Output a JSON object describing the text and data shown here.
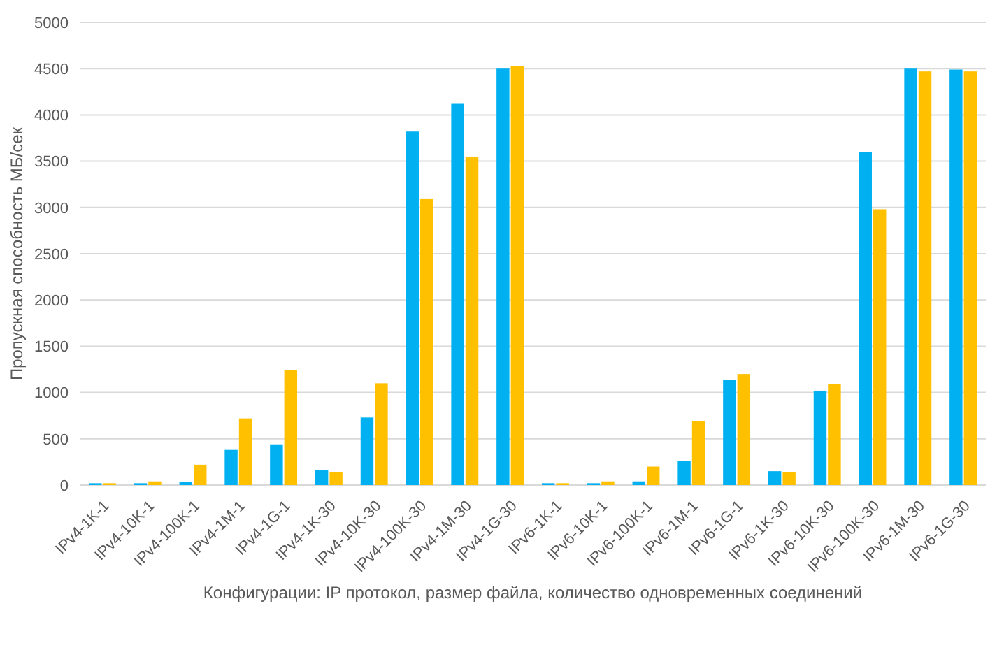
{
  "chart_data": {
    "type": "bar",
    "xlabel": "Конфигурации: IP протокол, размер файла, количество одновременных соединений",
    "ylabel": "Пропускная способность МБ/сек",
    "categories": [
      "IPv4-1K-1",
      "IPv4-10K-1",
      "IPv4-100K-1",
      "IPv4-1M-1",
      "IPv4-1G-1",
      "IPv4-1K-30",
      "IPv4-10K-30",
      "IPv4-100K-30",
      "IPv4-1M-30",
      "IPv4-1G-30",
      "IPv6-1K-1",
      "IPv6-10K-1",
      "IPv6-100K-1",
      "IPv6-1M-1",
      "IPv6-1G-1",
      "IPv6-1K-30",
      "IPv6-10K-30",
      "IPv6-100K-30",
      "IPv6-1M-30",
      "IPv6-1G-30"
    ],
    "series": [
      {
        "color": "#00b0f0",
        "values": [
          20,
          20,
          30,
          380,
          440,
          160,
          730,
          3820,
          4120,
          4500,
          20,
          20,
          40,
          260,
          1140,
          150,
          1020,
          3600,
          4500,
          4490
        ]
      },
      {
        "color": "#ffc000",
        "values": [
          20,
          40,
          220,
          720,
          1240,
          140,
          1100,
          3090,
          3550,
          4530,
          20,
          40,
          200,
          690,
          1200,
          140,
          1090,
          2980,
          4470,
          4470
        ]
      }
    ],
    "ylim": [
      0,
      5000
    ],
    "yticks": [
      0,
      500,
      1000,
      1500,
      2000,
      2500,
      3000,
      3500,
      4000,
      4500,
      5000
    ],
    "grid": "y"
  }
}
